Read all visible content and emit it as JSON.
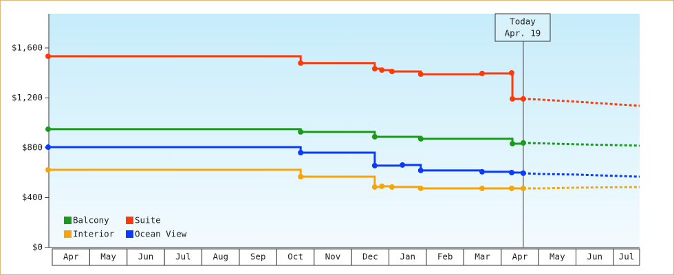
{
  "chart_data": {
    "type": "step-line",
    "xlim": [
      -0.11,
      15.7
    ],
    "ylim": [
      0,
      1875
    ],
    "xticks": [
      {
        "value": 0.5,
        "label": "Apr"
      },
      {
        "value": 1.5,
        "label": "May"
      },
      {
        "value": 2.5,
        "label": "Jun"
      },
      {
        "value": 3.5,
        "label": "Jul"
      },
      {
        "value": 4.5,
        "label": "Aug"
      },
      {
        "value": 5.5,
        "label": "Sep"
      },
      {
        "value": 6.5,
        "label": "Oct"
      },
      {
        "value": 7.5,
        "label": "Nov"
      },
      {
        "value": 8.5,
        "label": "Dec"
      },
      {
        "value": 9.5,
        "label": "Jan"
      },
      {
        "value": 10.5,
        "label": "Feb"
      },
      {
        "value": 11.5,
        "label": "Mar"
      },
      {
        "value": 12.5,
        "label": "Apr"
      },
      {
        "value": 13.5,
        "label": "May"
      },
      {
        "value": 14.5,
        "label": "Jun"
      },
      {
        "value": 15.5,
        "label": "Jul"
      }
    ],
    "yticks": [
      {
        "value": 0,
        "label": "$0"
      },
      {
        "value": 400,
        "label": "$400"
      },
      {
        "value": 800,
        "label": "$800"
      },
      {
        "value": 1200,
        "label": "$1,200"
      },
      {
        "value": 1600,
        "label": "$1,600"
      }
    ],
    "legend": "bottom-left",
    "annotation": {
      "lines": [
        "Today",
        "Apr. 19"
      ],
      "x": 12.59
    },
    "series": [
      {
        "name": "Balcony",
        "color": "#1a9a1a",
        "x": [
          -0.11,
          6.64,
          8.62,
          9.85,
          12.3,
          12.59
        ],
        "values": [
          949,
          927,
          888,
          872,
          833,
          839
        ],
        "forecast_x": [
          12.59,
          13,
          14,
          15.7
        ],
        "forecast_values": [
          839,
          836,
          828,
          817
        ]
      },
      {
        "name": "Suite",
        "color": "#ff3a0a",
        "x": [
          -0.11,
          6.64,
          8.62,
          8.81,
          9.08,
          9.85,
          11.49,
          12.28,
          12.3,
          12.59
        ],
        "values": [
          1534,
          1479,
          1434,
          1423,
          1412,
          1390,
          1396,
          1401,
          1192,
          1192
        ],
        "forecast_x": [
          12.59,
          13,
          14,
          15,
          15.7
        ],
        "forecast_values": [
          1192,
          1187,
          1170,
          1150,
          1137
        ]
      },
      {
        "name": "Interior",
        "color": "#f5a40a",
        "x": [
          -0.11,
          6.64,
          8.62,
          8.81,
          9.08,
          9.85,
          11.49,
          12.28,
          12.59
        ],
        "values": [
          623,
          568,
          485,
          491,
          485,
          474,
          474,
          474,
          474
        ],
        "forecast_x": [
          12.59,
          13,
          14,
          15.7
        ],
        "forecast_values": [
          474,
          474,
          480,
          485
        ]
      },
      {
        "name": "Ocean View",
        "color": "#0a3aff",
        "x": [
          -0.11,
          6.64,
          8.62,
          9.36,
          9.85,
          11.49,
          12.28,
          12.59
        ],
        "values": [
          805,
          761,
          657,
          662,
          618,
          607,
          601,
          596
        ],
        "forecast_x": [
          12.59,
          13,
          14,
          15.7
        ],
        "forecast_values": [
          596,
          590,
          585,
          568
        ]
      }
    ]
  }
}
